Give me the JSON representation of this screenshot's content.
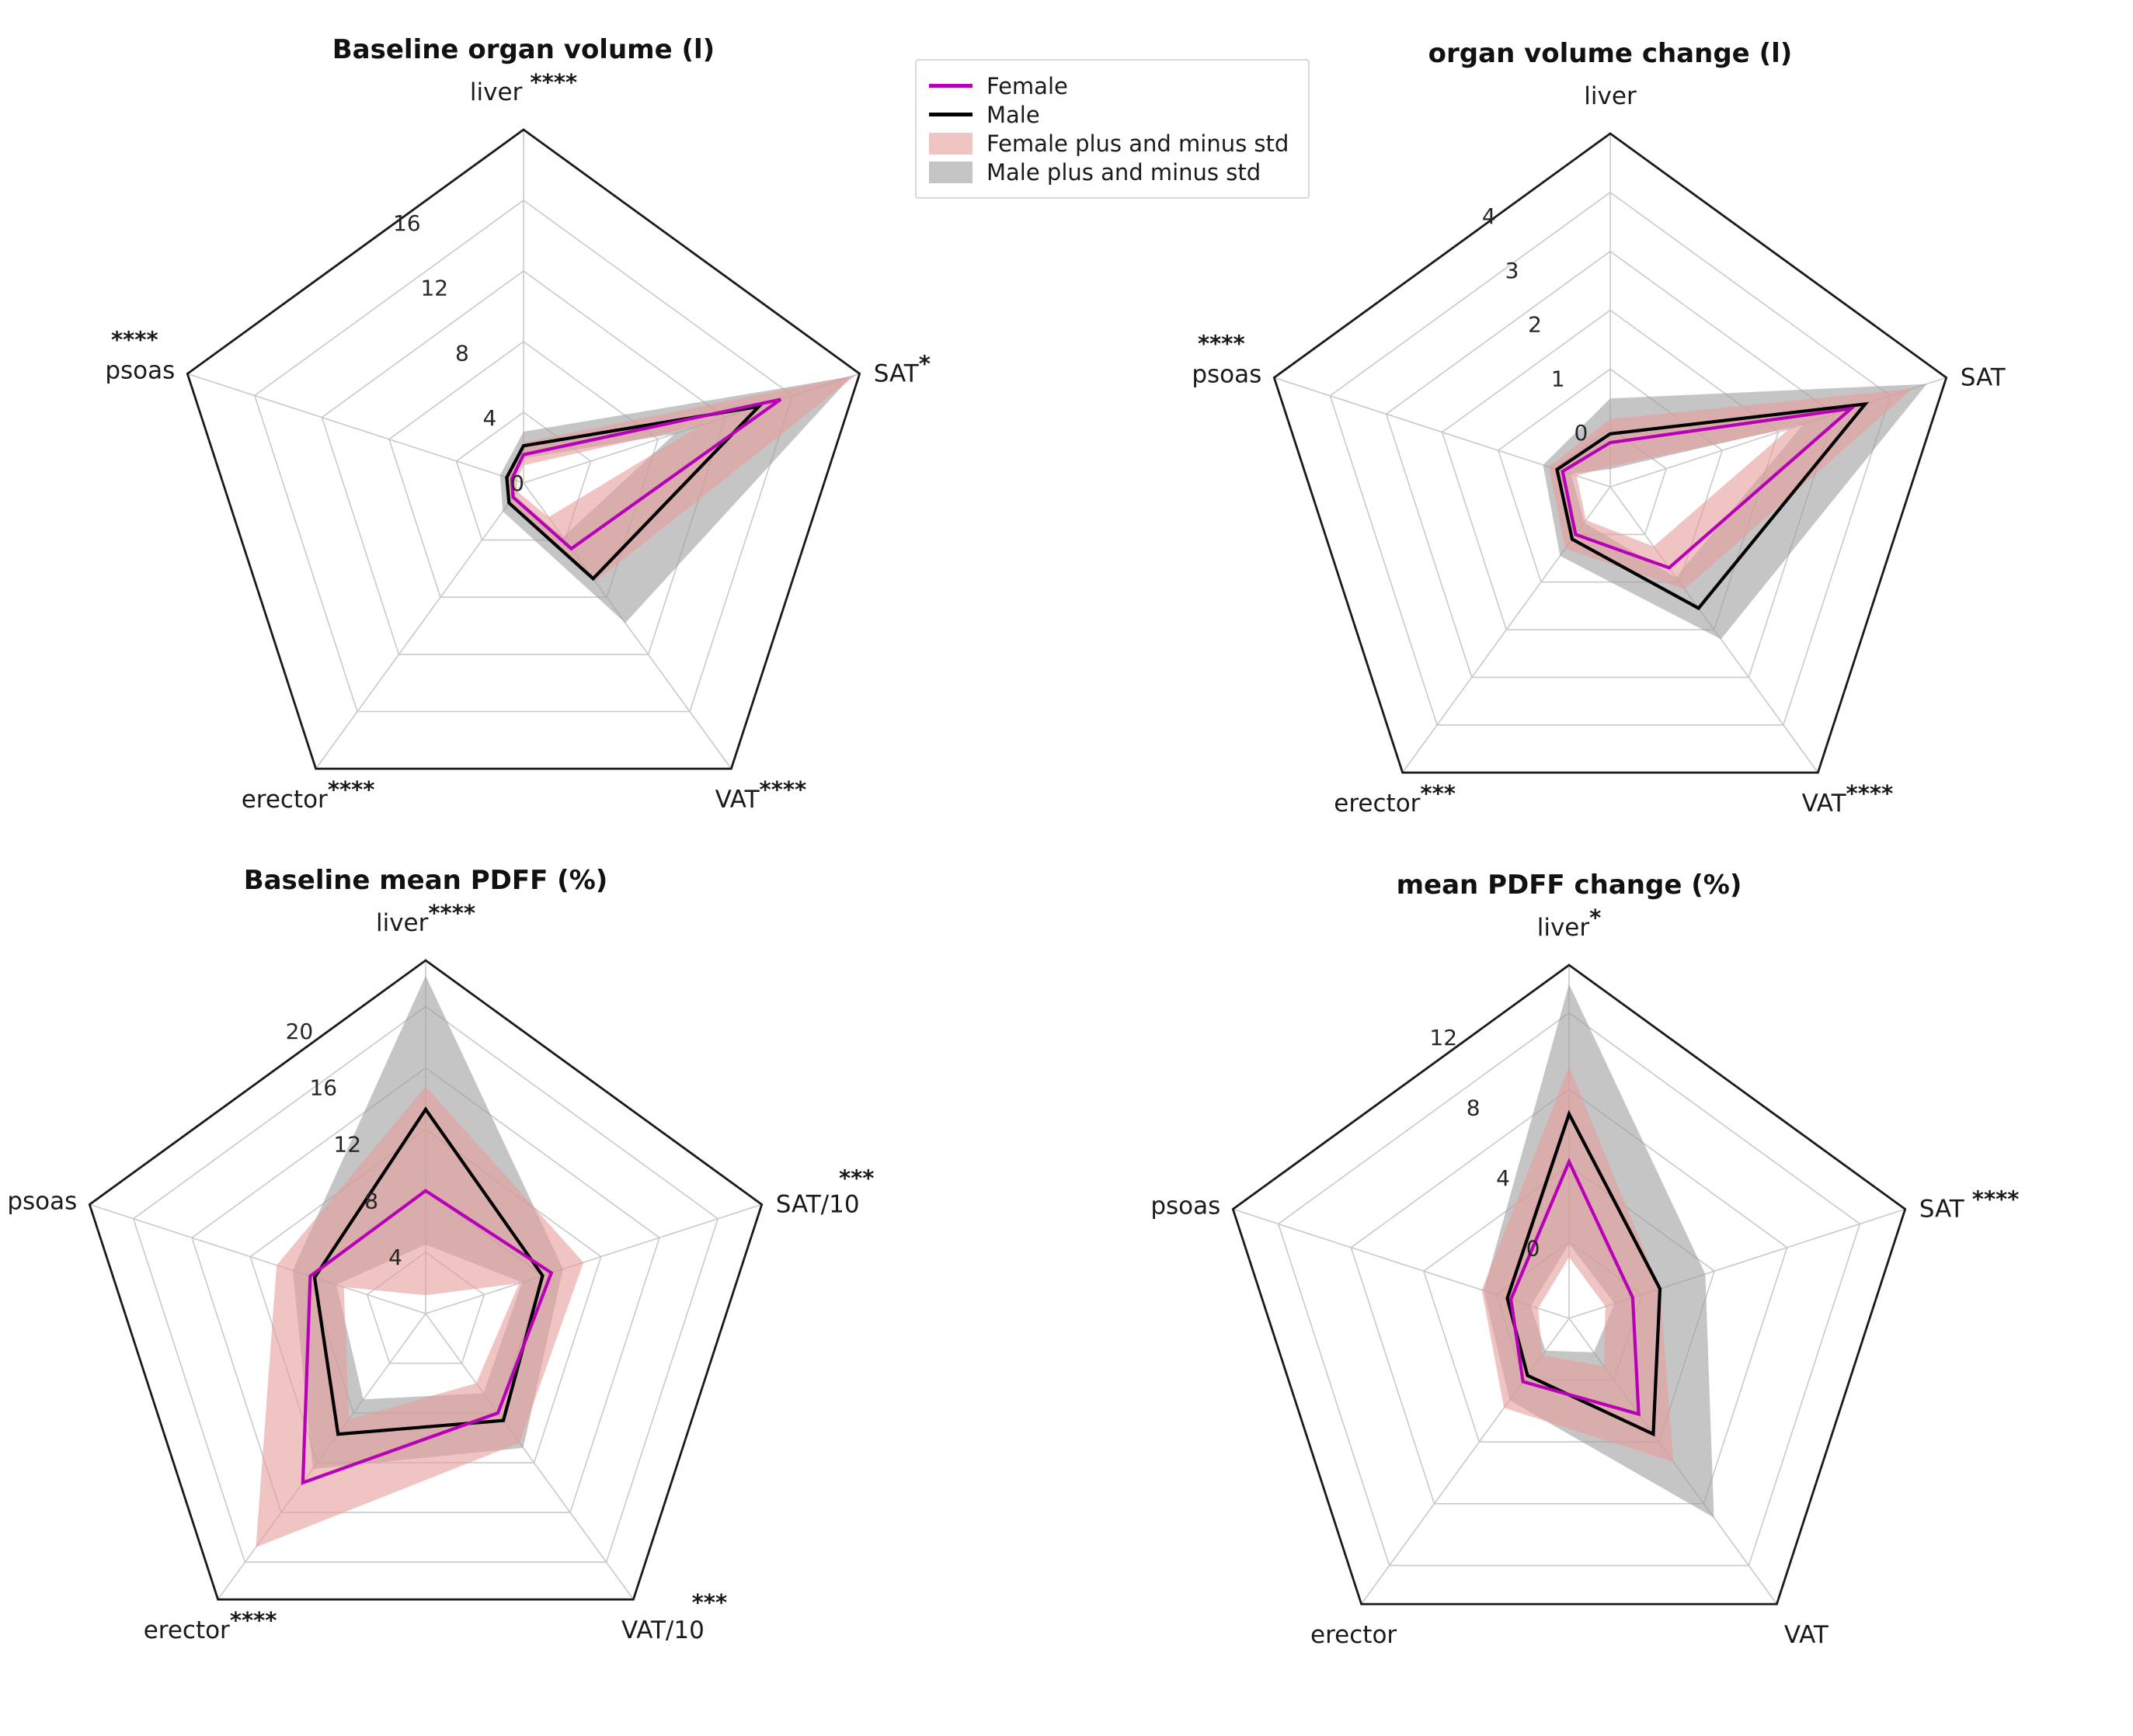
{
  "figure": {
    "background": "#ffffff",
    "description_note": "Four pentagon radar charts comparing Female vs Male organ MRI measures with plus/minus std bands"
  },
  "colors": {
    "female": "#b800b8",
    "male": "#000000",
    "female_band": "#e89c9c",
    "male_band": "#9e9e9e",
    "grid": "#c9c9c9",
    "outline": "#1a1a1a",
    "tick_text": "#262626",
    "label_text": "#1a1a1a"
  },
  "legend": {
    "items": [
      {
        "label": "Female",
        "type": "line",
        "color_key": "female"
      },
      {
        "label": "Male",
        "type": "line",
        "color_key": "male"
      },
      {
        "label": "Female plus and minus std",
        "type": "patch",
        "color_key": "female_band"
      },
      {
        "label": "Male plus and minus std",
        "type": "patch",
        "color_key": "male_band"
      }
    ]
  },
  "chart_data": [
    {
      "id": "baseline-organ-volume",
      "type": "radar",
      "title": "Baseline organ volume (l)",
      "rmin": 0,
      "rmax": 20,
      "ticks": [
        0,
        4,
        8,
        12,
        16
      ],
      "axes": [
        {
          "label": "liver",
          "stars": "****",
          "stars_pos": "sup",
          "stars_space": true
        },
        {
          "label": "SAT",
          "stars": "*",
          "stars_pos": "sup",
          "stars_space": false
        },
        {
          "label": "VAT",
          "stars": "****",
          "stars_pos": "sup",
          "stars_space": false
        },
        {
          "label": "erector",
          "stars": "****",
          "stars_pos": "sup",
          "stars_space": false
        },
        {
          "label": "psoas",
          "stars": "****",
          "stars_pos": "above",
          "stars_space": false
        }
      ],
      "series": [
        {
          "name": "Female",
          "values": [
            1.6,
            15.3,
            4.6,
            1.0,
            0.7
          ]
        },
        {
          "name": "Male",
          "values": [
            2.1,
            14.0,
            6.7,
            1.4,
            1.0
          ]
        }
      ],
      "bands": [
        {
          "name": "Female plus and minus std",
          "lower": [
            1.0,
            10.5,
            2.4,
            0.6,
            0.4
          ],
          "upper": [
            2.3,
            19.8,
            6.9,
            1.4,
            1.0
          ]
        },
        {
          "name": "Male plus and minus std",
          "lower": [
            1.4,
            9.0,
            3.8,
            0.9,
            0.6
          ],
          "upper": [
            2.9,
            19.5,
            9.8,
            2.0,
            1.4
          ]
        }
      ]
    },
    {
      "id": "organ-volume-change",
      "type": "radar",
      "title": "organ volume change (l)",
      "rmin": -1,
      "rmax": 5,
      "ticks": [
        0,
        1,
        2,
        3,
        4
      ],
      "axes": [
        {
          "label": "liver",
          "stars": "",
          "stars_pos": "none",
          "stars_space": false
        },
        {
          "label": "SAT",
          "stars": "",
          "stars_pos": "none",
          "stars_space": false
        },
        {
          "label": "VAT",
          "stars": "****",
          "stars_pos": "sup",
          "stars_space": false
        },
        {
          "label": "erector",
          "stars": "***",
          "stars_pos": "sup",
          "stars_space": false
        },
        {
          "label": "psoas",
          "stars": "****",
          "stars_pos": "above",
          "stars_space": false
        }
      ],
      "series": [
        {
          "name": "Female",
          "values": [
            -0.25,
            3.3,
            0.7,
            0.0,
            -0.15
          ]
        },
        {
          "name": "Male",
          "values": [
            -0.1,
            3.55,
            1.55,
            0.1,
            -0.05
          ]
        }
      ],
      "bands": [
        {
          "name": "Female plus and minus std",
          "lower": [
            -0.65,
            2.2,
            0.25,
            -0.3,
            -0.4
          ],
          "upper": [
            0.15,
            4.4,
            1.15,
            0.3,
            0.1
          ]
        },
        {
          "name": "Male plus and minus std",
          "lower": [
            -0.7,
            2.45,
            0.9,
            -0.25,
            -0.3
          ],
          "upper": [
            0.5,
            4.65,
            2.2,
            0.45,
            0.2
          ]
        }
      ]
    },
    {
      "id": "baseline-mean-pdff",
      "type": "radar",
      "title": "Baseline mean PDFF (%)",
      "rmin": 0,
      "rmax": 23,
      "ticks": [
        4,
        8,
        12,
        16,
        20
      ],
      "axes": [
        {
          "label": "liver",
          "stars": "****",
          "stars_pos": "sup",
          "stars_space": false
        },
        {
          "label": "SAT/10",
          "stars": "***",
          "stars_pos": "above",
          "stars_space": false
        },
        {
          "label": "VAT/10",
          "stars": "***",
          "stars_pos": "above",
          "stars_space": false
        },
        {
          "label": "erector",
          "stars": "****",
          "stars_pos": "sup",
          "stars_space": false
        },
        {
          "label": "psoas",
          "stars": "",
          "stars_pos": "none",
          "stars_space": false
        }
      ],
      "series": [
        {
          "name": "Female",
          "values": [
            8.0,
            8.6,
            8.0,
            13.6,
            7.9
          ]
        },
        {
          "name": "Male",
          "values": [
            13.3,
            8.0,
            8.6,
            9.7,
            7.6
          ]
        }
      ],
      "bands": [
        {
          "name": "Female plus and minus std",
          "lower": [
            1.2,
            6.4,
            5.6,
            8.5,
            5.6
          ],
          "upper": [
            14.8,
            10.8,
            10.4,
            18.8,
            10.2
          ]
        },
        {
          "name": "Male plus and minus std",
          "lower": [
            4.5,
            6.6,
            6.4,
            6.9,
            6.1
          ],
          "upper": [
            22.0,
            9.4,
            10.8,
            12.5,
            9.1
          ]
        }
      ]
    },
    {
      "id": "mean-pdff-change",
      "type": "radar",
      "title": "mean PDFF change (%)",
      "rmin": -4,
      "rmax": 14.5,
      "ticks": [
        0,
        4,
        8,
        12
      ],
      "axes": [
        {
          "label": "liver",
          "stars": "*",
          "stars_pos": "sup",
          "stars_space": false
        },
        {
          "label": "SAT",
          "stars": "****",
          "stars_pos": "sup",
          "stars_space": true
        },
        {
          "label": "VAT",
          "stars": "",
          "stars_pos": "none",
          "stars_space": false
        },
        {
          "label": "erector",
          "stars": "",
          "stars_pos": "none",
          "stars_space": false
        },
        {
          "label": "psoas",
          "stars": "",
          "stars_pos": "none",
          "stars_space": false
        }
      ],
      "series": [
        {
          "name": "Female",
          "values": [
            4.2,
            -0.5,
            2.2,
            0.1,
            -0.8
          ]
        },
        {
          "name": "Male",
          "values": [
            6.7,
            1.0,
            3.5,
            -0.3,
            -0.6
          ]
        }
      ],
      "bands": [
        {
          "name": "Female plus and minus std",
          "lower": [
            -0.8,
            -2.0,
            -0.9,
            -1.6,
            -2.3
          ],
          "upper": [
            9.2,
            1.0,
            5.3,
            1.8,
            0.8
          ]
        },
        {
          "name": "Male plus and minus std",
          "lower": [
            -0.1,
            -1.5,
            -1.8,
            -1.9,
            -1.9
          ],
          "upper": [
            13.5,
            3.5,
            8.9,
            1.3,
            0.7
          ]
        }
      ]
    }
  ]
}
